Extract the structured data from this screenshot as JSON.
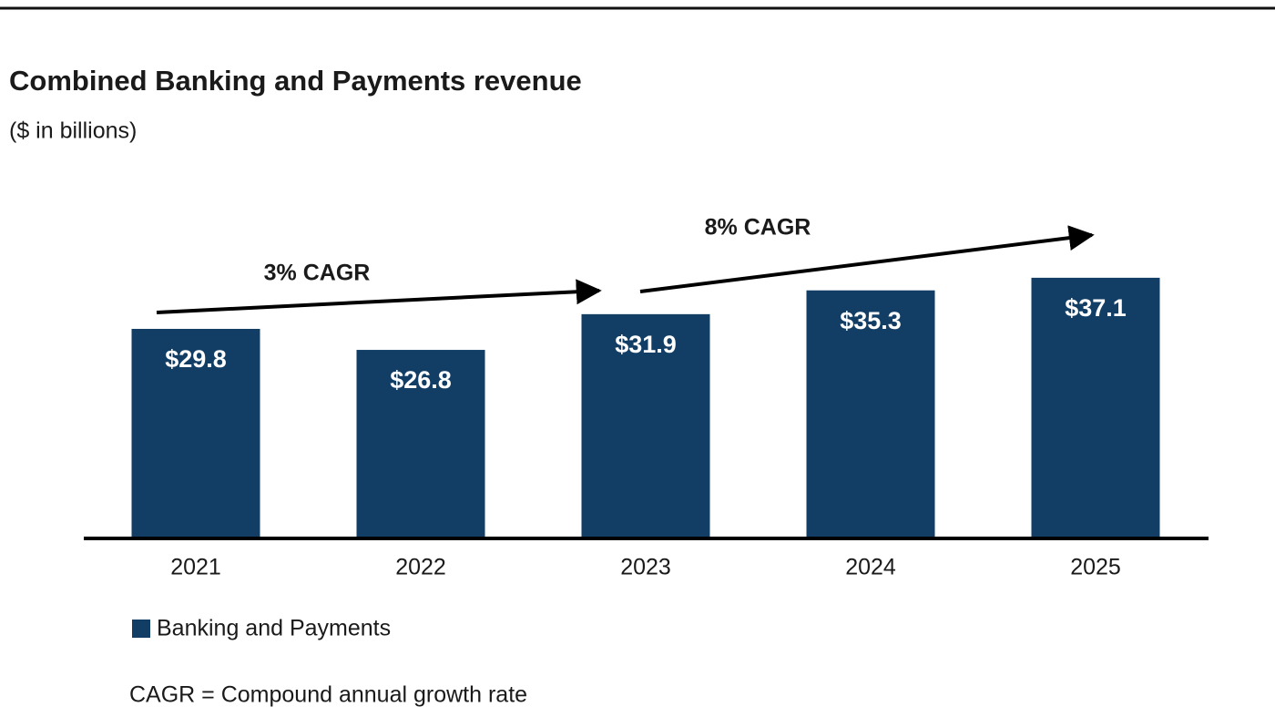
{
  "chart_data": {
    "type": "bar",
    "title": "Combined Banking and Payments revenue",
    "subtitle": "($ in billions)",
    "categories": [
      "2021",
      "2022",
      "2023",
      "2024",
      "2025"
    ],
    "series": [
      {
        "name": "Banking and Payments",
        "color": "#123e66",
        "values": [
          29.8,
          26.8,
          31.9,
          35.3,
          37.1
        ],
        "value_labels": [
          "$29.8",
          "$26.8",
          "$31.9",
          "$35.3",
          "$37.1"
        ]
      }
    ],
    "annotations": [
      "3% CAGR",
      "8% CAGR"
    ],
    "note": "CAGR = Compound annual growth rate"
  }
}
